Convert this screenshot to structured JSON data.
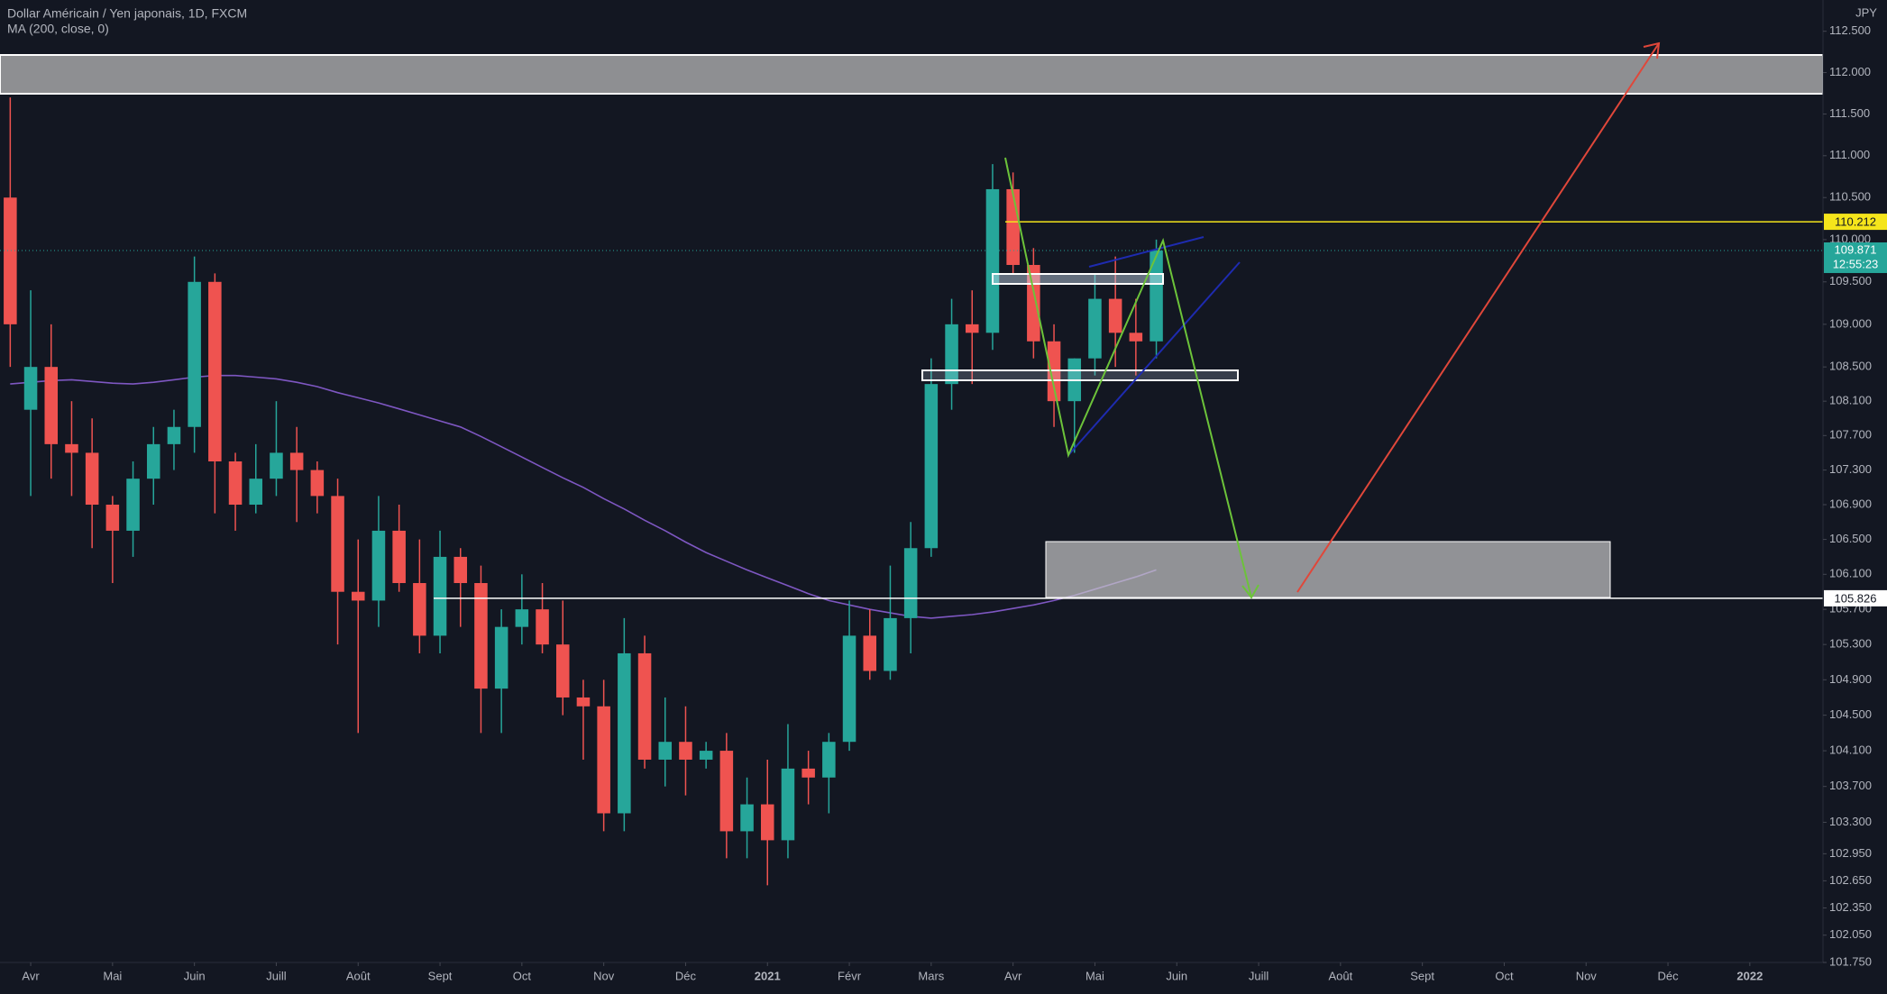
{
  "chart_data": {
    "type": "candlestick",
    "title": "Dollar Américain / Yen japonais, 1D, FXCM",
    "currency": "JPY",
    "categories": [
      null,
      "Avr",
      null,
      null,
      null,
      "Mai",
      null,
      null,
      null,
      "Juin",
      null,
      null,
      null,
      "Juill",
      null,
      null,
      null,
      "Août",
      null,
      null,
      null,
      "Sept",
      null,
      null,
      null,
      "Oct",
      null,
      null,
      null,
      "Nov",
      null,
      null,
      null,
      "Déc",
      null,
      null,
      null,
      "2021",
      null,
      null,
      null,
      "Févr",
      null,
      null,
      null,
      "Mars",
      null,
      null,
      null,
      "Avr",
      null,
      null,
      null,
      "Mai",
      null,
      null,
      null,
      "Juin",
      null,
      null,
      null,
      "Juill",
      null,
      null,
      null,
      "Août",
      null,
      null,
      null,
      "Sept",
      null,
      null,
      null,
      "Oct",
      null,
      null,
      null,
      "Nov",
      null,
      null,
      null,
      "Déc",
      null,
      null,
      null,
      "2022",
      null,
      null
    ],
    "open": [
      110.5,
      108.0,
      108.5,
      107.6,
      107.5,
      106.9,
      106.6,
      107.2,
      107.6,
      107.8,
      109.5,
      107.4,
      106.9,
      107.2,
      107.5,
      107.3,
      107.0,
      105.9,
      105.8,
      106.6,
      106.0,
      105.4,
      106.3,
      106.0,
      104.8,
      105.5,
      105.7,
      105.3,
      104.7,
      104.6,
      103.4,
      105.2,
      104.0,
      104.2,
      104.0,
      104.1,
      103.2,
      103.5,
      103.1,
      103.9,
      103.8,
      104.2,
      105.4,
      105.0,
      105.6,
      106.4,
      108.3,
      109.0,
      108.9,
      110.6,
      109.7,
      108.8,
      108.1,
      108.6,
      109.3,
      108.9,
      108.8,
      null,
      null,
      null,
      null,
      null,
      null,
      null,
      null,
      null,
      null,
      null,
      null,
      null,
      null,
      null,
      null,
      null,
      null,
      null,
      null,
      null,
      null,
      null,
      null,
      null,
      null,
      null,
      null,
      null,
      null,
      null
    ],
    "high": [
      111.7,
      109.4,
      109.0,
      108.1,
      107.9,
      107.0,
      107.4,
      107.8,
      108.0,
      109.8,
      109.6,
      107.5,
      107.6,
      108.1,
      107.8,
      107.4,
      107.2,
      106.5,
      107.0,
      106.9,
      106.5,
      106.6,
      106.4,
      106.2,
      105.7,
      106.1,
      106.0,
      105.8,
      104.9,
      104.9,
      105.6,
      105.4,
      104.7,
      104.6,
      104.2,
      104.3,
      103.8,
      104.0,
      104.4,
      104.1,
      104.3,
      105.8,
      105.7,
      106.2,
      106.7,
      108.6,
      109.3,
      109.4,
      110.9,
      110.8,
      109.9,
      109.0,
      108.6,
      109.6,
      109.8,
      109.3,
      110.0,
      null,
      null,
      null,
      null,
      null,
      null,
      null,
      null,
      null,
      null,
      null,
      null,
      null,
      null,
      null,
      null,
      null,
      null,
      null,
      null,
      null,
      null,
      null,
      null,
      null,
      null,
      null,
      null,
      null,
      null,
      null
    ],
    "low": [
      108.5,
      107.0,
      107.2,
      107.0,
      106.4,
      106.0,
      106.3,
      106.9,
      107.3,
      107.5,
      106.8,
      106.6,
      106.8,
      107.0,
      106.7,
      106.8,
      105.3,
      104.3,
      105.5,
      105.9,
      105.2,
      105.2,
      105.5,
      104.3,
      104.3,
      105.3,
      105.2,
      104.5,
      104.0,
      103.2,
      103.2,
      103.9,
      103.7,
      103.6,
      103.9,
      102.9,
      102.9,
      102.6,
      102.9,
      103.5,
      103.4,
      104.1,
      104.9,
      104.9,
      105.2,
      106.3,
      108.0,
      108.3,
      108.7,
      109.6,
      108.6,
      107.8,
      107.5,
      108.4,
      108.5,
      108.4,
      108.6,
      null,
      null,
      null,
      null,
      null,
      null,
      null,
      null,
      null,
      null,
      null,
      null,
      null,
      null,
      null,
      null,
      null,
      null,
      null,
      null,
      null,
      null,
      null,
      null,
      null,
      null,
      null,
      null,
      null,
      null,
      null
    ],
    "close": [
      109.0,
      108.5,
      107.6,
      107.5,
      106.9,
      106.6,
      107.2,
      107.6,
      107.8,
      109.5,
      107.4,
      106.9,
      107.2,
      107.5,
      107.3,
      107.0,
      105.9,
      105.8,
      106.6,
      106.0,
      105.4,
      106.3,
      106.0,
      104.8,
      105.5,
      105.7,
      105.3,
      104.7,
      104.6,
      103.4,
      105.2,
      104.0,
      104.2,
      104.0,
      104.1,
      103.2,
      103.5,
      103.1,
      103.9,
      103.8,
      104.2,
      105.4,
      105.0,
      105.6,
      106.4,
      108.3,
      109.0,
      108.9,
      110.6,
      109.7,
      108.8,
      108.1,
      108.6,
      109.3,
      108.9,
      108.8,
      109.87,
      null,
      null,
      null,
      null,
      null,
      null,
      null,
      null,
      null,
      null,
      null,
      null,
      null,
      null,
      null,
      null,
      null,
      null,
      null,
      null,
      null,
      null,
      null,
      null,
      null,
      null,
      null,
      null,
      null,
      null,
      null
    ],
    "up_color": "#26a69a",
    "down_color": "#ef5350",
    "ma": {
      "name": "MA (200, close, 0)",
      "color": "#7e57c2",
      "values": [
        108.3,
        108.32,
        108.34,
        108.35,
        108.33,
        108.31,
        108.3,
        108.32,
        108.35,
        108.38,
        108.4,
        108.4,
        108.38,
        108.36,
        108.32,
        108.27,
        108.2,
        108.14,
        108.08,
        108.01,
        107.94,
        107.87,
        107.8,
        107.69,
        107.57,
        107.45,
        107.33,
        107.21,
        107.1,
        106.97,
        106.85,
        106.72,
        106.6,
        106.47,
        106.35,
        106.25,
        106.15,
        106.06,
        105.97,
        105.88,
        105.8,
        105.75,
        105.7,
        105.66,
        105.62,
        105.6,
        105.62,
        105.64,
        105.67,
        105.71,
        105.75,
        105.8,
        105.86,
        105.93,
        106.0,
        106.07,
        106.15,
        null,
        null,
        null,
        null,
        null,
        null,
        null,
        null,
        null,
        null,
        null,
        null,
        null,
        null,
        null,
        null,
        null,
        null,
        null,
        null,
        null,
        null,
        null,
        null,
        null,
        null,
        null,
        null,
        null,
        null,
        null
      ]
    },
    "log_scale": true,
    "grid": false,
    "ylim": [
      101.75,
      112.88
    ],
    "yticks": [
      {
        "value": 112.5,
        "label": "112.500"
      },
      {
        "value": 112,
        "label": "112.000"
      },
      {
        "value": 111.5,
        "label": "111.500"
      },
      {
        "value": 111,
        "label": "111.000"
      },
      {
        "value": 110.5,
        "label": "110.500"
      },
      {
        "value": 110,
        "label": "110.000"
      },
      {
        "value": 109.5,
        "label": "109.500"
      },
      {
        "value": 109,
        "label": "109.000"
      },
      {
        "value": 108.5,
        "label": "108.500"
      },
      {
        "value": 108.1,
        "label": "108.100"
      },
      {
        "value": 107.7,
        "label": "107.700"
      },
      {
        "value": 107.3,
        "label": "107.300"
      },
      {
        "value": 106.9,
        "label": "106.900"
      },
      {
        "value": 106.5,
        "label": "106.500"
      },
      {
        "value": 106.1,
        "label": "106.100"
      },
      {
        "value": 105.7,
        "label": "105.700"
      },
      {
        "value": 105.3,
        "label": "105.300"
      },
      {
        "value": 104.9,
        "label": "104.900"
      },
      {
        "value": 104.5,
        "label": "104.500"
      },
      {
        "value": 104.1,
        "label": "104.100"
      },
      {
        "value": 103.7,
        "label": "103.700"
      },
      {
        "value": 103.3,
        "label": "103.300"
      },
      {
        "value": 102.95,
        "label": "102.950"
      },
      {
        "value": 102.65,
        "label": "102.650"
      },
      {
        "value": 102.35,
        "label": "102.350"
      },
      {
        "value": 102.05,
        "label": "102.050"
      },
      {
        "value": 101.75,
        "label": "101.750"
      }
    ],
    "lines": [
      {
        "value": 110.212,
        "color": "#f5e51b"
      },
      {
        "value": 105.826,
        "color": "#ffffff"
      }
    ],
    "last_price": {
      "value": 109.871,
      "countdown": "12:55:23",
      "color": "#26a69a"
    }
  }
}
